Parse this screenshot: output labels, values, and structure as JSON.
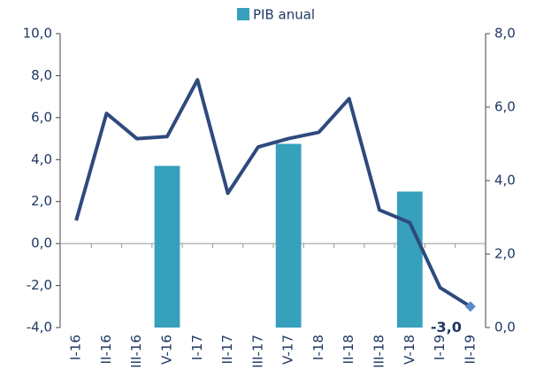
{
  "chart_data": {
    "type": "bar-line",
    "legend": "top",
    "categories": [
      "I-16",
      "II-16",
      "III-16",
      "V-16",
      "I-17",
      "II-17",
      "III-17",
      "V-17",
      "I-18",
      "II-18",
      "III-18",
      "V-18",
      "I-19",
      "II-19"
    ],
    "ylim": [
      -4,
      10
    ],
    "yticks": [
      {
        "value": -4,
        "label": "-4,0"
      },
      {
        "value": -2,
        "label": "-2,0"
      },
      {
        "value": 0,
        "label": "0,0"
      },
      {
        "value": 2,
        "label": "2,0"
      },
      {
        "value": 4,
        "label": "4,0"
      },
      {
        "value": 6,
        "label": "6,0"
      },
      {
        "value": 8,
        "label": "8,0"
      },
      {
        "value": 10,
        "label": "10,0"
      }
    ],
    "y2lim": [
      0,
      8
    ],
    "y2ticks": [
      {
        "value": 0,
        "label": "0,0"
      },
      {
        "value": 2,
        "label": "2,0"
      },
      {
        "value": 4,
        "label": "4,0"
      },
      {
        "value": 6,
        "label": "6,0"
      },
      {
        "value": 8,
        "label": "8,0"
      }
    ],
    "series": [
      {
        "name": "PIB anual",
        "type": "bar",
        "axis": "y2",
        "color": "#36a0bd",
        "values": [
          null,
          null,
          null,
          4.4,
          null,
          null,
          null,
          5.0,
          null,
          null,
          null,
          3.7,
          null,
          null
        ]
      },
      {
        "type": "line",
        "color": "#2e4a7d",
        "values": [
          1.1,
          6.2,
          5.0,
          5.1,
          7.8,
          2.4,
          4.6,
          5.0,
          5.3,
          6.9,
          1.6,
          1.0,
          -2.1,
          -3.0
        ],
        "value_labels": [
          null,
          null,
          null,
          null,
          null,
          null,
          null,
          null,
          null,
          null,
          null,
          null,
          null,
          "-3,0"
        ]
      }
    ]
  }
}
